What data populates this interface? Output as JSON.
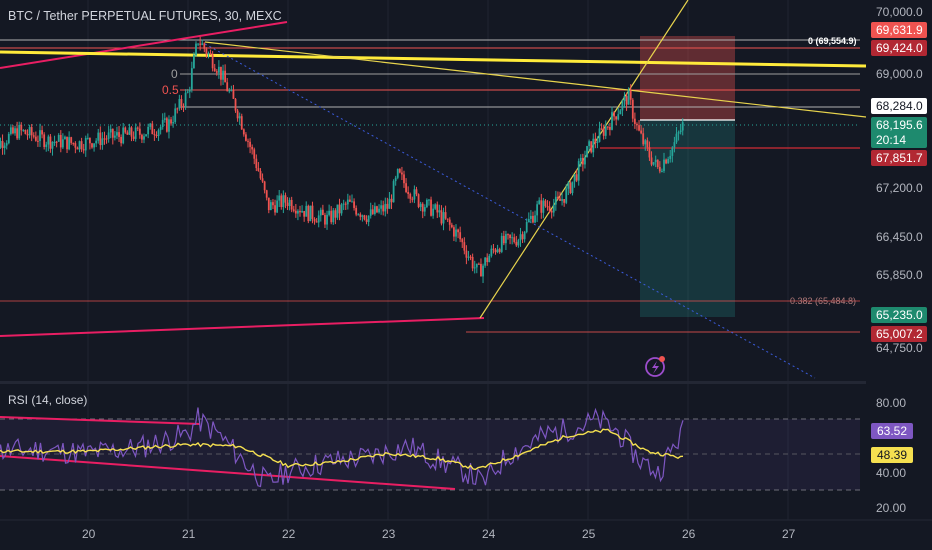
{
  "header": {
    "title": "BTC / Tether PERPETUAL FUTURES, 30, MEXC"
  },
  "price_axis": {
    "ticks": [
      "70,000.0",
      "69,000.0",
      "67,200.0",
      "66,450.0",
      "65,850.0",
      "64,750.0"
    ],
    "badges": {
      "target_top": "69,631.9",
      "level_69424": "69,424.0",
      "level_68284": "68,284.0",
      "current_price": "68,195.6",
      "countdown": "20:14",
      "stop_level": "67,851.7",
      "entry_level": "65,235.0",
      "low_level": "65,007.2"
    }
  },
  "fib": {
    "zero_label": "0",
    "half_label": "0.5",
    "top_label": "0 (69,554.9)",
    "ratio_label": "0.382 (65,484.8)"
  },
  "rsi": {
    "title": "RSI (14, close)",
    "ticks": [
      "80.00",
      "40.00",
      "20.00"
    ],
    "value_badge": "63.52",
    "ma_badge": "48.39"
  },
  "time_axis": {
    "labels": [
      "20",
      "21",
      "22",
      "23",
      "24",
      "25",
      "26",
      "27"
    ]
  },
  "colors": {
    "background": "#141823",
    "bull": "#26a69a",
    "bear": "#ef5350",
    "trend_pink": "#e91e63",
    "trend_yellow": "#ffeb3b",
    "rsi_line": "#7e57c2",
    "rsi_ma": "#f5e050",
    "badge_red": "#b22833",
    "badge_green": "#1e8a6e"
  },
  "chart_data": {
    "type": "candlestick",
    "title": "BTC / Tether PERPETUAL FUTURES, 30, MEXC",
    "x": [
      "20",
      "21",
      "22",
      "23",
      "24",
      "25",
      "26",
      "27"
    ],
    "ylim": [
      64750,
      70000
    ],
    "series": [
      {
        "name": "",
        "values": [
          {
            "t": 19.0,
            "c": 67800
          },
          {
            "t": 19.3,
            "c": 68100
          },
          {
            "t": 19.6,
            "c": 67950
          },
          {
            "t": 19.9,
            "c": 67900
          },
          {
            "t": 20.2,
            "c": 68000
          },
          {
            "t": 20.5,
            "c": 68050
          },
          {
            "t": 20.8,
            "c": 68200
          },
          {
            "t": 21.0,
            "c": 68700
          },
          {
            "t": 21.1,
            "c": 69550
          },
          {
            "t": 21.3,
            "c": 69100
          },
          {
            "t": 21.5,
            "c": 68400
          },
          {
            "t": 21.7,
            "c": 67500
          },
          {
            "t": 21.8,
            "c": 66900
          },
          {
            "t": 22.0,
            "c": 67000
          },
          {
            "t": 22.2,
            "c": 66800
          },
          {
            "t": 22.4,
            "c": 66700
          },
          {
            "t": 22.6,
            "c": 66950
          },
          {
            "t": 22.8,
            "c": 66750
          },
          {
            "t": 23.0,
            "c": 66900
          },
          {
            "t": 23.1,
            "c": 67400
          },
          {
            "t": 23.3,
            "c": 67000
          },
          {
            "t": 23.5,
            "c": 66800
          },
          {
            "t": 23.7,
            "c": 66450
          },
          {
            "t": 23.9,
            "c": 65850
          },
          {
            "t": 24.0,
            "c": 66100
          },
          {
            "t": 24.1,
            "c": 66300
          },
          {
            "t": 24.3,
            "c": 66400
          },
          {
            "t": 24.5,
            "c": 66900
          },
          {
            "t": 24.7,
            "c": 66950
          },
          {
            "t": 24.8,
            "c": 67150
          },
          {
            "t": 25.0,
            "c": 67800
          },
          {
            "t": 25.2,
            "c": 68200
          },
          {
            "t": 25.4,
            "c": 68650
          },
          {
            "t": 25.5,
            "c": 68100
          },
          {
            "t": 25.6,
            "c": 67750
          },
          {
            "t": 25.7,
            "c": 67500
          },
          {
            "t": 25.85,
            "c": 67850
          },
          {
            "t": 25.95,
            "c": 68195.6
          }
        ]
      }
    ],
    "levels": [
      69631.9,
      69554.9,
      69424.0,
      68284.0,
      68195.6,
      67851.7,
      65484.8,
      65235.0,
      65007.2
    ],
    "rsi": {
      "ylim": [
        20,
        80
      ],
      "value": 63.52,
      "ma_value": 48.39,
      "rsi_points": [
        {
          "t": 19.0,
          "v": 52
        },
        {
          "t": 19.5,
          "v": 53
        },
        {
          "t": 20.0,
          "v": 51
        },
        {
          "t": 20.5,
          "v": 54
        },
        {
          "t": 21.0,
          "v": 62
        },
        {
          "t": 21.1,
          "v": 70
        },
        {
          "t": 21.3,
          "v": 62
        },
        {
          "t": 21.6,
          "v": 44
        },
        {
          "t": 21.8,
          "v": 34
        },
        {
          "t": 22.0,
          "v": 41
        },
        {
          "t": 22.4,
          "v": 46
        },
        {
          "t": 22.8,
          "v": 49
        },
        {
          "t": 23.2,
          "v": 55
        },
        {
          "t": 23.5,
          "v": 47
        },
        {
          "t": 23.8,
          "v": 40
        },
        {
          "t": 23.95,
          "v": 34
        },
        {
          "t": 24.2,
          "v": 50
        },
        {
          "t": 24.6,
          "v": 62
        },
        {
          "t": 24.9,
          "v": 66
        },
        {
          "t": 25.1,
          "v": 70
        },
        {
          "t": 25.3,
          "v": 63
        },
        {
          "t": 25.5,
          "v": 48
        },
        {
          "t": 25.7,
          "v": 40
        },
        {
          "t": 25.95,
          "v": 63.52
        }
      ],
      "ma_points": [
        {
          "t": 19.0,
          "v": 52
        },
        {
          "t": 20.0,
          "v": 52
        },
        {
          "t": 21.0,
          "v": 56
        },
        {
          "t": 21.5,
          "v": 55
        },
        {
          "t": 22.0,
          "v": 44
        },
        {
          "t": 22.5,
          "v": 46
        },
        {
          "t": 23.0,
          "v": 51
        },
        {
          "t": 23.5,
          "v": 48
        },
        {
          "t": 23.9,
          "v": 42
        },
        {
          "t": 24.3,
          "v": 50
        },
        {
          "t": 24.8,
          "v": 61
        },
        {
          "t": 25.2,
          "v": 64
        },
        {
          "t": 25.6,
          "v": 52
        },
        {
          "t": 25.95,
          "v": 48.39
        }
      ]
    }
  }
}
